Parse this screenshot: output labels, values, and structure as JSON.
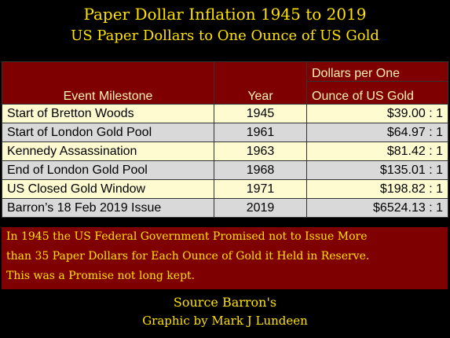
{
  "title": "Paper Dollar Inflation 1945 to 2019",
  "subtitle": "US Paper Dollars to One Ounce of US Gold",
  "headers": {
    "event": "Event Milestone",
    "year": "Year",
    "dollars_line1": "Dollars per One",
    "dollars_line2": "Ounce of US Gold"
  },
  "rows": [
    {
      "event": "Start of Bretton Woods",
      "year": "1945",
      "ratio": "$39.00 : 1"
    },
    {
      "event": "Start of London Gold Pool",
      "year": "1961",
      "ratio": "$64.97 : 1"
    },
    {
      "event": "Kennedy Assassination",
      "year": "1963",
      "ratio": "$81.42 : 1"
    },
    {
      "event": "End of London Gold Pool",
      "year": "1968",
      "ratio": "$135.01 : 1"
    },
    {
      "event": "US Closed Gold Window",
      "year": "1971",
      "ratio": "$198.82 : 1"
    },
    {
      "event": "Barron’s 18 Feb 2019 Issue",
      "year": "2019",
      "ratio": "$6524.13 : 1"
    }
  ],
  "note_lines": [
    "In 1945 the US Federal Government Promised not to Issue More",
    "than 35 Paper Dollars for Each Ounce of Gold it Held in Reserve.",
    "This was a Promise not long kept."
  ],
  "source": "Source Barron's",
  "credit": "Graphic by Mark J Lundeen",
  "colors": {
    "background": "#000000",
    "title_yellow": "#ffe200",
    "header_red": "#7f0000",
    "row_cream": "#fffbd0",
    "row_gray": "#d9d9d9"
  }
}
